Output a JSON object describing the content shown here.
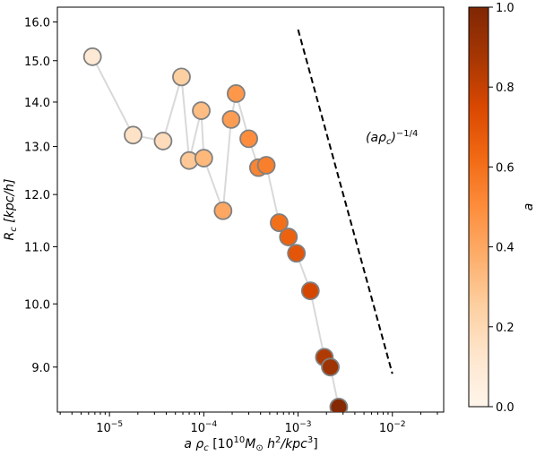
{
  "chart_data": {
    "type": "scatter",
    "xscale": "log",
    "yscale": "log",
    "xlim": [
      2.8e-06,
      0.035
    ],
    "ylim": [
      8.35,
      16.4
    ],
    "xlabel": "a ρc [10^10 M⊙ h^2/kpc^3]",
    "ylabel": "Rc [kpc/h]",
    "xtick_labels": [
      "10^-5",
      "10^-4",
      "10^-3",
      "10^-2"
    ],
    "yticks": [
      9.0,
      10.0,
      11.0,
      12.0,
      13.0,
      14.0,
      15.0,
      16.0
    ],
    "ytick_labels": [
      "9.0",
      "10.0",
      "11.0",
      "12.0",
      "13.0",
      "14.0",
      "15.0",
      "16.0"
    ],
    "colormap": "Oranges",
    "color_by": "a",
    "colorbar": {
      "label": "a",
      "range": [
        0.0,
        1.0
      ],
      "ticks": [
        "0.0",
        "0.2",
        "0.4",
        "0.6",
        "0.8",
        "1.0"
      ]
    },
    "line_color": "#d9d9d9",
    "marker_edge_color": "#808080",
    "points": [
      {
        "x": 6.6e-06,
        "y": 15.1,
        "a": 0.1
      },
      {
        "x": 1.78e-05,
        "y": 13.25,
        "a": 0.15
      },
      {
        "x": 3.7e-05,
        "y": 13.12,
        "a": 0.18
      },
      {
        "x": 5.8e-05,
        "y": 14.6,
        "a": 0.25
      },
      {
        "x": 7e-05,
        "y": 12.7,
        "a": 0.28
      },
      {
        "x": 9.4e-05,
        "y": 13.8,
        "a": 0.32
      },
      {
        "x": 0.0001,
        "y": 12.75,
        "a": 0.34
      },
      {
        "x": 0.00016,
        "y": 11.68,
        "a": 0.4
      },
      {
        "x": 0.000195,
        "y": 13.6,
        "a": 0.44
      },
      {
        "x": 0.00022,
        "y": 14.2,
        "a": 0.46
      },
      {
        "x": 0.0003,
        "y": 13.17,
        "a": 0.5
      },
      {
        "x": 0.00038,
        "y": 12.55,
        "a": 0.53
      },
      {
        "x": 0.00046,
        "y": 12.6,
        "a": 0.55
      },
      {
        "x": 0.00063,
        "y": 11.45,
        "a": 0.6
      },
      {
        "x": 0.00079,
        "y": 11.18,
        "a": 0.65
      },
      {
        "x": 0.00096,
        "y": 10.88,
        "a": 0.7
      },
      {
        "x": 0.00135,
        "y": 10.22,
        "a": 0.76
      },
      {
        "x": 0.0019,
        "y": 9.15,
        "a": 0.85
      },
      {
        "x": 0.0022,
        "y": 9.0,
        "a": 0.9
      },
      {
        "x": 0.0027,
        "y": 8.42,
        "a": 0.98
      }
    ],
    "reference_line": {
      "label": "(aρc)^-1/4",
      "style": "dashed",
      "color": "#000000",
      "x": [
        0.001,
        0.01
      ],
      "y": [
        15.8,
        8.9
      ]
    }
  }
}
